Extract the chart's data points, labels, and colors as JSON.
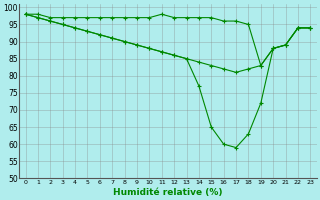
{
  "xlabel": "Humidité relative (%)",
  "background_color": "#b0eded",
  "grid_color": "#888888",
  "line_color": "#008800",
  "marker": "+",
  "ylim": [
    50,
    101
  ],
  "xlim": [
    -0.5,
    23.5
  ],
  "yticks": [
    50,
    55,
    60,
    65,
    70,
    75,
    80,
    85,
    90,
    95,
    100
  ],
  "xticks": [
    0,
    1,
    2,
    3,
    4,
    5,
    6,
    7,
    8,
    9,
    10,
    11,
    12,
    13,
    14,
    15,
    16,
    17,
    18,
    19,
    20,
    21,
    22,
    23
  ],
  "line1_x": [
    0,
    1,
    2,
    3,
    4,
    5,
    6,
    7,
    8,
    9,
    10,
    11,
    12,
    13,
    14,
    15,
    16,
    17,
    18,
    19,
    20,
    21,
    22,
    23
  ],
  "line1_y": [
    98,
    98,
    97,
    97,
    97,
    97,
    97,
    97,
    97,
    97,
    97,
    98,
    97,
    97,
    97,
    97,
    96,
    96,
    95,
    83,
    88,
    89,
    94,
    94
  ],
  "line2_x": [
    0,
    1,
    2,
    3,
    4,
    5,
    6,
    7,
    8,
    9,
    10,
    11,
    12,
    13,
    14,
    15,
    16,
    17,
    18,
    19,
    20,
    21,
    22,
    23
  ],
  "line2_y": [
    98,
    97,
    96,
    95,
    94,
    93,
    92,
    91,
    90,
    89,
    88,
    87,
    86,
    85,
    84,
    83,
    82,
    81,
    82,
    83,
    88,
    89,
    94,
    94
  ],
  "line3_x": [
    0,
    1,
    2,
    3,
    4,
    5,
    6,
    7,
    8,
    9,
    10,
    11,
    12,
    13,
    14,
    15,
    16,
    17,
    18,
    19,
    20,
    21,
    22,
    23
  ],
  "line3_y": [
    98,
    97,
    96,
    95,
    94,
    93,
    92,
    91,
    90,
    89,
    88,
    87,
    86,
    85,
    77,
    65,
    60,
    59,
    63,
    72,
    88,
    89,
    94,
    94
  ]
}
